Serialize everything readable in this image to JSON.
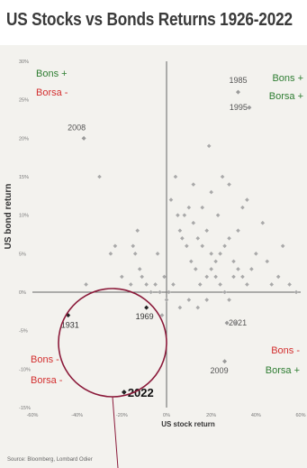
{
  "chart_data": {
    "type": "scatter",
    "title": "US Stocks vs Bonds Returns 1926-2022",
    "xlabel": "US stock return",
    "ylabel": "US bond return",
    "xlim": [
      -60,
      60
    ],
    "ylim": [
      -15,
      30
    ],
    "x_ticks": [
      -60,
      -40,
      -20,
      0,
      20,
      40,
      60
    ],
    "x_tick_labels": [
      "-60%",
      "-40%",
      "-20%",
      "0%",
      "20%",
      "40%",
      "60%"
    ],
    "y_ticks": [
      -15,
      -10,
      -5,
      0,
      5,
      10,
      15,
      20,
      25,
      30
    ],
    "y_tick_labels": [
      "-15%",
      "-10%",
      "-5%",
      "0%",
      "5%",
      "10%",
      "15%",
      "20%",
      "25%",
      "30%"
    ],
    "source": "Source: Bloomberg, Lombard Odier",
    "quadrant_labels": [
      {
        "id": "q1a",
        "text": "Bons +",
        "color": "#2e7d32"
      },
      {
        "id": "q1b",
        "text": "Borsa -",
        "color": "#d32f2f"
      },
      {
        "id": "q2a",
        "text": "Bons +",
        "color": "#2e7d32"
      },
      {
        "id": "q2b",
        "text": "Borsa +",
        "color": "#2e7d32"
      },
      {
        "id": "q3a",
        "text": "Bons -",
        "color": "#d32f2f"
      },
      {
        "id": "q3b",
        "text": "Borsa -",
        "color": "#d32f2f"
      },
      {
        "id": "q4a",
        "text": "Bons -",
        "color": "#d32f2f"
      },
      {
        "id": "q4b",
        "text": "Borsa +",
        "color": "#2e7d32"
      }
    ],
    "labeled_points": [
      {
        "label": "2008",
        "x": -37,
        "y": 20
      },
      {
        "label": "1985",
        "x": 32,
        "y": 26
      },
      {
        "label": "1995",
        "x": 37,
        "y": 24
      },
      {
        "label": "2021",
        "x": 27,
        "y": -4
      },
      {
        "label": "2009",
        "x": 26,
        "y": -9
      },
      {
        "label": "1931",
        "x": -44,
        "y": -3
      },
      {
        "label": "1969",
        "x": -9,
        "y": -2
      },
      {
        "label": "2022",
        "x": -19,
        "y": -13
      }
    ],
    "points": [
      {
        "x": -36,
        "y": 1
      },
      {
        "x": -25,
        "y": 5
      },
      {
        "x": -23,
        "y": 6
      },
      {
        "x": -15,
        "y": 6
      },
      {
        "x": -12,
        "y": 3
      },
      {
        "x": -9,
        "y": 1
      },
      {
        "x": -7,
        "y": 0
      },
      {
        "x": -5,
        "y": 1
      },
      {
        "x": -11,
        "y": 2
      },
      {
        "x": -13,
        "y": 8
      },
      {
        "x": -4,
        "y": 5
      },
      {
        "x": -3,
        "y": 0
      },
      {
        "x": -1,
        "y": 2
      },
      {
        "x": 1,
        "y": 0
      },
      {
        "x": 3,
        "y": 1
      },
      {
        "x": 5,
        "y": 10
      },
      {
        "x": 7,
        "y": 7
      },
      {
        "x": 9,
        "y": 6
      },
      {
        "x": 11,
        "y": 4
      },
      {
        "x": 13,
        "y": 3
      },
      {
        "x": 15,
        "y": 1
      },
      {
        "x": 18,
        "y": 2
      },
      {
        "x": 20,
        "y": 3
      },
      {
        "x": 22,
        "y": 4
      },
      {
        "x": 24,
        "y": 5
      },
      {
        "x": 26,
        "y": 6
      },
      {
        "x": 28,
        "y": 7
      },
      {
        "x": 30,
        "y": 4
      },
      {
        "x": 32,
        "y": 3
      },
      {
        "x": 34,
        "y": 2
      },
      {
        "x": 36,
        "y": 1
      },
      {
        "x": 38,
        "y": 3
      },
      {
        "x": 2,
        "y": 12
      },
      {
        "x": 4,
        "y": 15
      },
      {
        "x": 6,
        "y": 8
      },
      {
        "x": 8,
        "y": 10
      },
      {
        "x": 10,
        "y": 11
      },
      {
        "x": 12,
        "y": 9
      },
      {
        "x": 14,
        "y": 7
      },
      {
        "x": 16,
        "y": 6
      },
      {
        "x": 18,
        "y": 8
      },
      {
        "x": 20,
        "y": 5
      },
      {
        "x": 22,
        "y": 2
      },
      {
        "x": 24,
        "y": 1
      },
      {
        "x": 26,
        "y": 0
      },
      {
        "x": 28,
        "y": -1
      },
      {
        "x": 30,
        "y": 2
      },
      {
        "x": 32,
        "y": 8
      },
      {
        "x": 34,
        "y": 11
      },
      {
        "x": 36,
        "y": 12
      },
      {
        "x": 40,
        "y": 5
      },
      {
        "x": 43,
        "y": 9
      },
      {
        "x": 45,
        "y": 4
      },
      {
        "x": 47,
        "y": 1
      },
      {
        "x": 50,
        "y": 2
      },
      {
        "x": 52,
        "y": 6
      },
      {
        "x": 55,
        "y": 1
      },
      {
        "x": 58,
        "y": 0
      },
      {
        "x": -2,
        "y": -3
      },
      {
        "x": 0,
        "y": -1
      },
      {
        "x": 6,
        "y": -2
      },
      {
        "x": 10,
        "y": -1
      },
      {
        "x": 14,
        "y": -2
      },
      {
        "x": 18,
        "y": -1
      },
      {
        "x": 31,
        "y": -4
      },
      {
        "x": 25,
        "y": 15
      },
      {
        "x": 12,
        "y": 14
      },
      {
        "x": 20,
        "y": 13
      },
      {
        "x": -20,
        "y": 2
      },
      {
        "x": -16,
        "y": 1
      },
      {
        "x": -14,
        "y": 5
      },
      {
        "x": 28,
        "y": 14
      },
      {
        "x": 23,
        "y": 10
      },
      {
        "x": 16,
        "y": 11
      },
      {
        "x": -30,
        "y": 15
      },
      {
        "x": 19,
        "y": 19
      }
    ]
  }
}
